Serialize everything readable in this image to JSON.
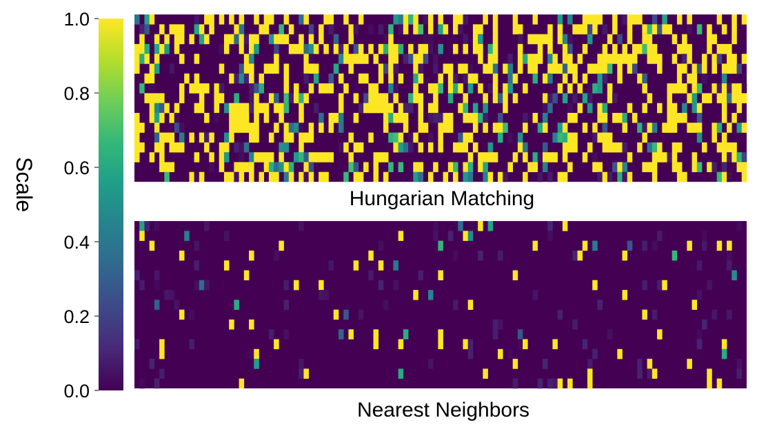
{
  "chart_data": [
    {
      "type": "heatmap",
      "title": "Hungarian Matching",
      "rows": 17,
      "cols": 123,
      "vmin": 0.0,
      "vmax": 1.0,
      "density": 0.38,
      "seed": 7
    },
    {
      "type": "heatmap",
      "title": "Nearest Neighbors",
      "rows": 17,
      "cols": 123,
      "vmin": 0.0,
      "vmax": 1.0,
      "density": 0.045,
      "seed": 19
    }
  ],
  "colorbar": {
    "label": "Scale",
    "ticks": [
      "0.0",
      "0.2",
      "0.4",
      "0.6",
      "0.8",
      "1.0"
    ],
    "tick_values": [
      0.0,
      0.2,
      0.4,
      0.6,
      0.8,
      1.0
    ],
    "colormap": "viridis",
    "stops": [
      "#440154",
      "#482878",
      "#3e4989",
      "#31688e",
      "#26828e",
      "#1f9e89",
      "#35b779",
      "#6ece58",
      "#b5de2b",
      "#fde725"
    ]
  }
}
